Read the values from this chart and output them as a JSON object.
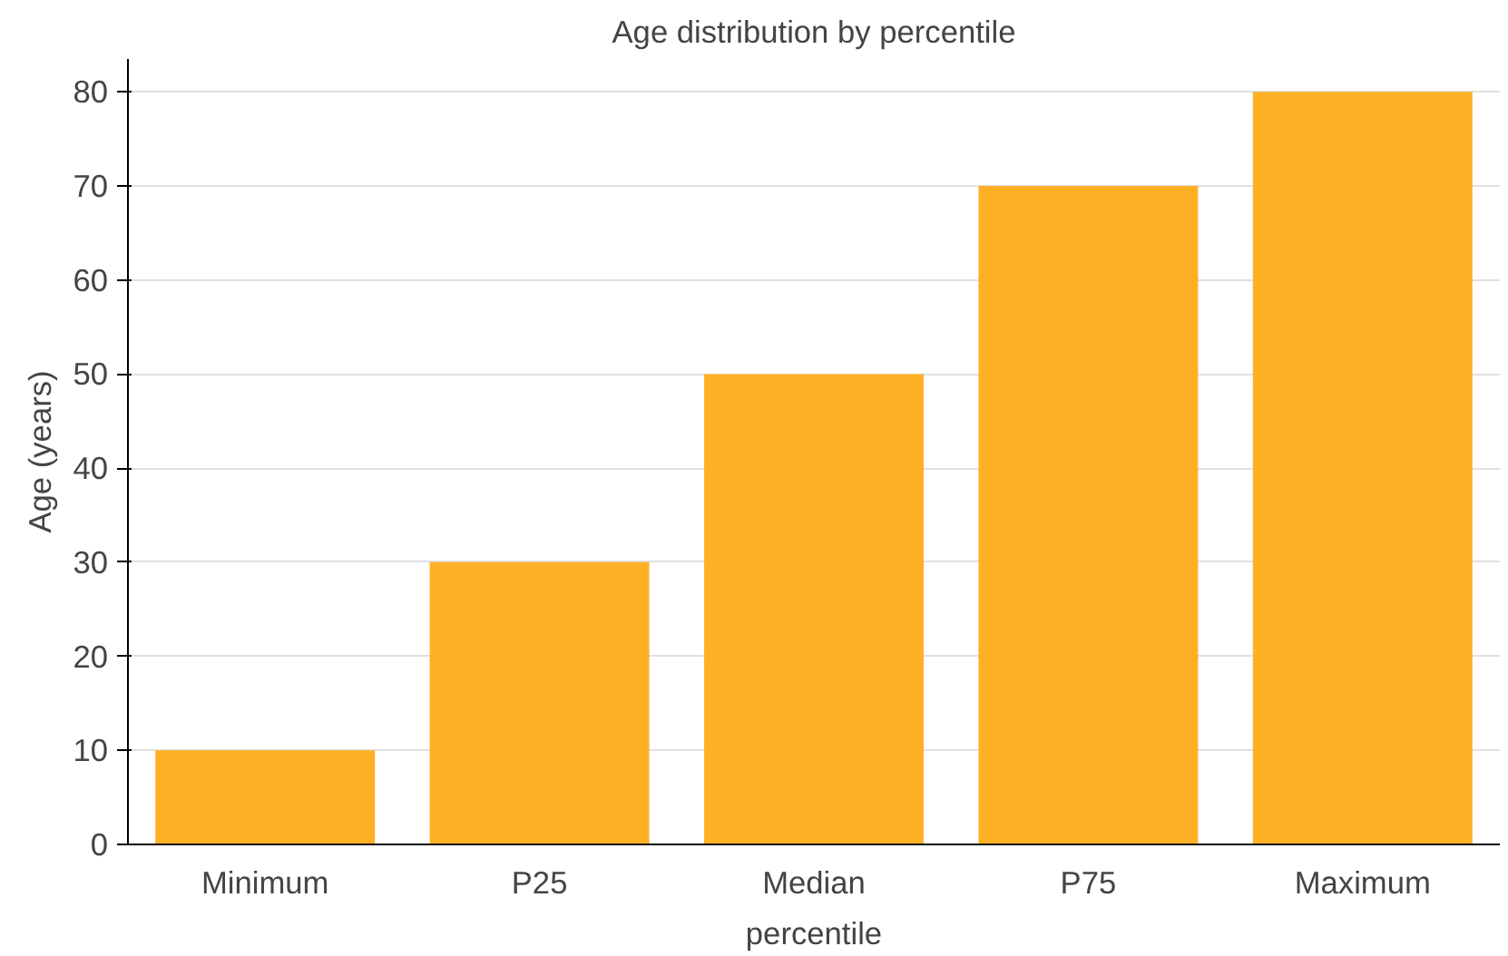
{
  "chart_data": {
    "type": "bar",
    "title": "Age distribution by percentile",
    "xlabel": "percentile",
    "ylabel": "Age (years)",
    "categories": [
      "Minimum",
      "P25",
      "Median",
      "P75",
      "Maximum"
    ],
    "values": [
      10,
      30,
      50,
      70,
      80
    ],
    "color": "#feb024",
    "ylim": [
      0,
      83.5
    ],
    "yticks": [
      0,
      10,
      20,
      30,
      40,
      50,
      60,
      70,
      80
    ],
    "grid": "y"
  }
}
